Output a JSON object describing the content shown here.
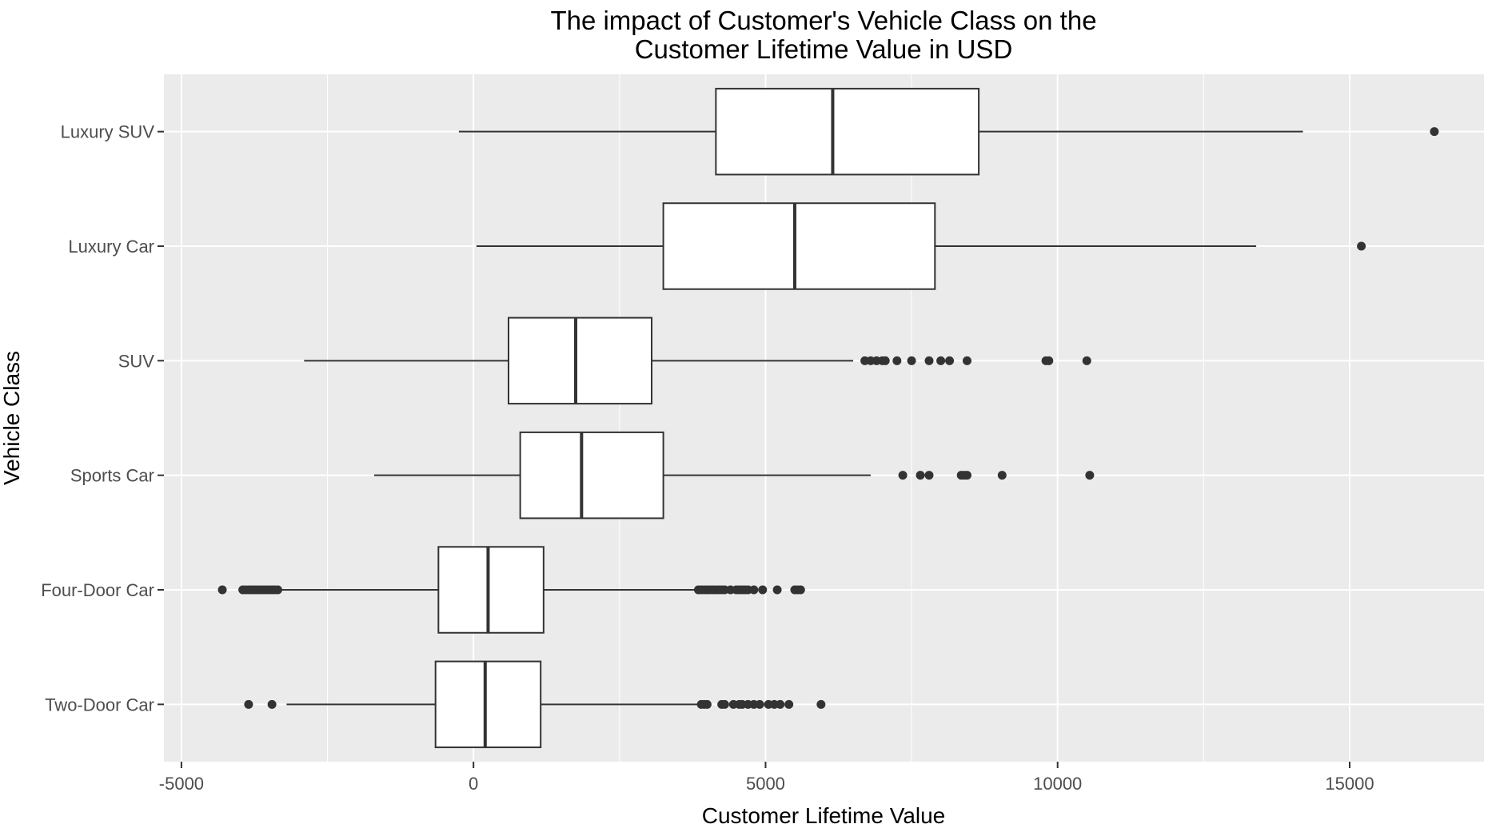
{
  "chart_data": {
    "type": "boxplot",
    "orientation": "horizontal",
    "title_line1": "The impact of Customer's Vehicle Class on the",
    "title_line2": "Customer Lifetime Value in USD",
    "xlabel": "Customer Lifetime Value",
    "ylabel": "Vehicle Class",
    "xlim": [
      -5300,
      17300
    ],
    "x_ticks": [
      -5000,
      0,
      5000,
      10000,
      15000
    ],
    "x_tick_labels": [
      "-5000",
      "0",
      "5000",
      "10000",
      "15000"
    ],
    "x_minor_ticks": [
      -2500,
      2500,
      7500,
      12500
    ],
    "grid": true,
    "legend": "none",
    "colors": {
      "panel": "#ebebeb",
      "grid": "#ffffff",
      "box_fill": "#ffffff",
      "line": "#333333",
      "tick_text": "#4d4d4d"
    },
    "categories": [
      "Luxury SUV",
      "Luxury Car",
      "SUV",
      "Sports Car",
      "Four-Door Car",
      "Two-Door Car"
    ],
    "boxes": [
      {
        "category": "Luxury SUV",
        "whisker_low": -250,
        "q1": 4150,
        "median": 6150,
        "q3": 8650,
        "whisker_high": 14200,
        "outliers": [
          16450
        ]
      },
      {
        "category": "Luxury Car",
        "whisker_low": 50,
        "q1": 3250,
        "median": 5500,
        "q3": 7900,
        "whisker_high": 13400,
        "outliers": [
          15200
        ]
      },
      {
        "category": "SUV",
        "whisker_low": -2900,
        "q1": 600,
        "median": 1750,
        "q3": 3050,
        "whisker_high": 6500,
        "outliers": [
          6700,
          6800,
          6900,
          7000,
          7050,
          7250,
          7500,
          7800,
          8000,
          8150,
          8450,
          9800,
          9850,
          10500
        ]
      },
      {
        "category": "Sports Car",
        "whisker_low": -1700,
        "q1": 800,
        "median": 1850,
        "q3": 3250,
        "whisker_high": 6800,
        "outliers": [
          7350,
          7650,
          7800,
          8350,
          8400,
          8450,
          9050,
          10550
        ]
      },
      {
        "category": "Four-Door Car",
        "whisker_low": -3300,
        "q1": -600,
        "median": 250,
        "q3": 1200,
        "whisker_high": 3800,
        "outliers": [
          -4300,
          -3950,
          -3900,
          -3850,
          -3800,
          -3750,
          -3700,
          -3650,
          -3600,
          -3550,
          -3500,
          -3450,
          -3400,
          -3350,
          3850,
          3900,
          3950,
          4000,
          4050,
          4100,
          4150,
          4200,
          4250,
          4300,
          4400,
          4500,
          4550,
          4600,
          4650,
          4700,
          4800,
          4950,
          5200,
          5500,
          5550,
          5600
        ]
      },
      {
        "category": "Two-Door Car",
        "whisker_low": -3200,
        "q1": -650,
        "median": 200,
        "q3": 1150,
        "whisker_high": 3850,
        "outliers": [
          -3850,
          -3450,
          3900,
          3950,
          4000,
          4250,
          4300,
          4450,
          4550,
          4600,
          4700,
          4800,
          4900,
          5050,
          5150,
          5250,
          5400,
          5950
        ]
      }
    ]
  }
}
